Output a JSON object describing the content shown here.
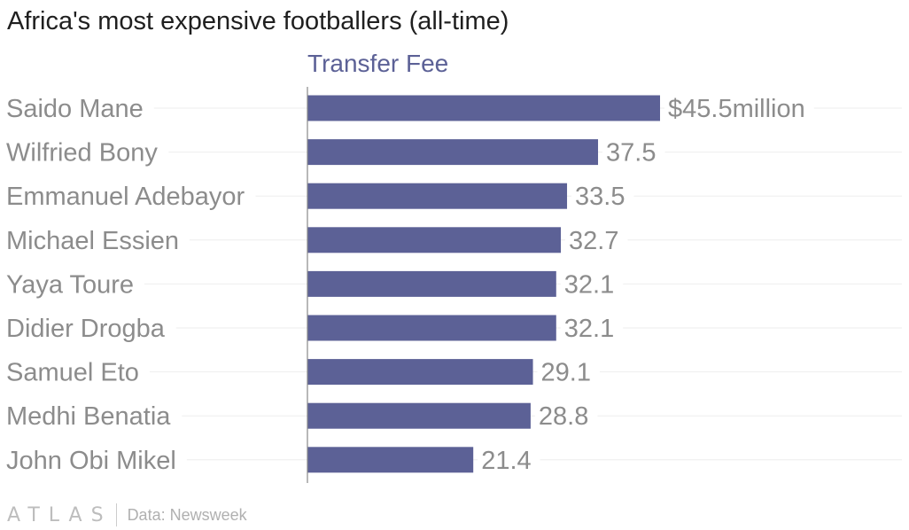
{
  "title": "Africa's most expensive footballers (all-time)",
  "colors": {
    "bar": "#5c6196",
    "series_label": "#5c6196",
    "label": "#8c8c8c"
  },
  "chart_data": {
    "type": "bar",
    "orientation": "horizontal",
    "title": "Africa's most expensive footballers (all-time)",
    "categories": [
      "Saido Mane",
      "Wilfried Bony",
      "Emmanuel Adebayor",
      "Michael Essien",
      "Yaya Toure",
      "Didier Drogba",
      "Samuel Eto",
      "Medhi Benatia",
      "John Obi Mikel"
    ],
    "series": [
      {
        "name": "Transfer Fee",
        "values": [
          45.5,
          37.5,
          33.5,
          32.7,
          32.1,
          32.1,
          29.1,
          28.8,
          21.4
        ]
      }
    ],
    "value_labels": [
      "$45.5million",
      "37.5",
      "33.5",
      "32.7",
      "32.1",
      "32.1",
      "29.1",
      "28.8",
      "21.4"
    ],
    "xlim": [
      0,
      45.5
    ],
    "grid": true,
    "legend": "none"
  },
  "footer": {
    "logo": "ATLAS",
    "source": "Data: Newsweek"
  }
}
